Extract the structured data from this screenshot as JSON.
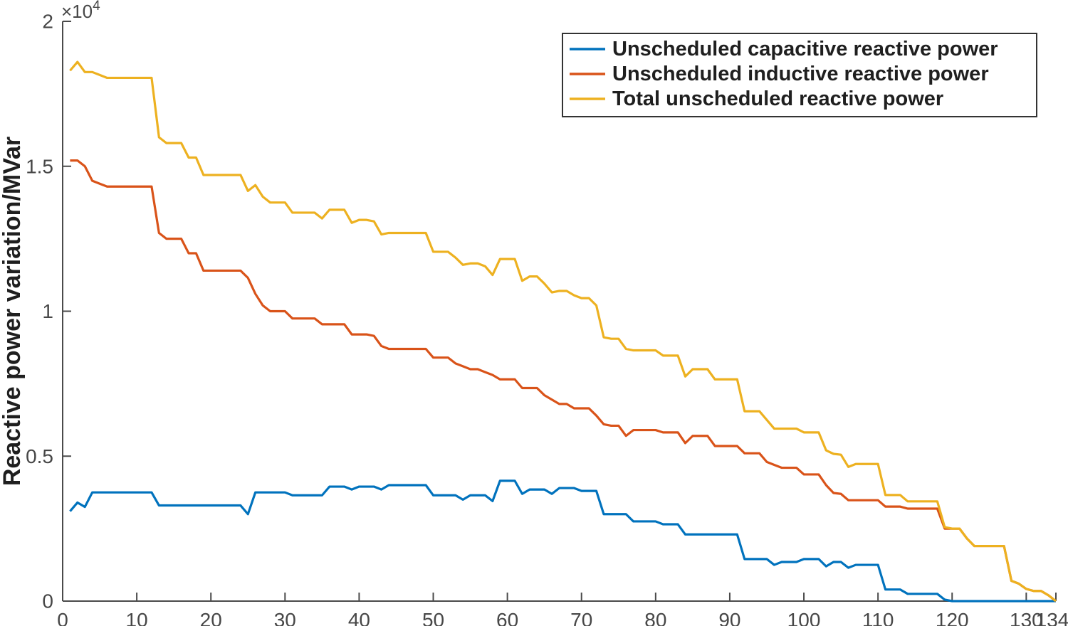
{
  "figure": {
    "background": "#ffffff",
    "axis_color": "#4a4a4a",
    "tick_label_color": "#474747",
    "text_color": "#1f1f1f",
    "y_axis_label": "Reactive power variation/MVar",
    "y_exponent_prefix": "×10",
    "y_exponent_power": "4"
  },
  "legend": {
    "border_color": "#333333",
    "background": "#ffffff",
    "items": [
      {
        "label": "Unscheduled capacitive reactive power",
        "color": "#0072BD"
      },
      {
        "label": "Unscheduled inductive reactive power",
        "color": "#D95319"
      },
      {
        "label": "Total unscheduled reactive power",
        "color": "#EDB120"
      }
    ]
  },
  "chart_data": {
    "type": "line",
    "title": "",
    "xlabel": "",
    "ylabel": "Reactive power variation/MVar",
    "xlim": [
      0,
      134
    ],
    "ylim": [
      0,
      20000
    ],
    "grid": false,
    "legend_position": "top-right-inside",
    "y_scale_note": "y axis shown in units of 10^4 MVar",
    "x_ticks": [
      0,
      10,
      20,
      30,
      40,
      50,
      60,
      70,
      80,
      90,
      100,
      110,
      120,
      130,
      134
    ],
    "y_ticks": [
      {
        "value": 0,
        "label": "0"
      },
      {
        "value": 5000,
        "label": "0.5"
      },
      {
        "value": 10000,
        "label": "1"
      },
      {
        "value": 15000,
        "label": "1.5"
      },
      {
        "value": 20000,
        "label": "2"
      }
    ],
    "x": [
      1,
      2,
      3,
      4,
      5,
      6,
      7,
      8,
      9,
      10,
      11,
      12,
      13,
      14,
      15,
      16,
      17,
      18,
      19,
      20,
      21,
      22,
      23,
      24,
      25,
      26,
      27,
      28,
      29,
      30,
      31,
      32,
      33,
      34,
      35,
      36,
      37,
      38,
      39,
      40,
      41,
      42,
      43,
      44,
      45,
      46,
      47,
      48,
      49,
      50,
      51,
      52,
      53,
      54,
      55,
      56,
      57,
      58,
      59,
      60,
      61,
      62,
      63,
      64,
      65,
      66,
      67,
      68,
      69,
      70,
      71,
      72,
      73,
      74,
      75,
      76,
      77,
      78,
      79,
      80,
      81,
      82,
      83,
      84,
      85,
      86,
      87,
      88,
      89,
      90,
      91,
      92,
      93,
      94,
      95,
      96,
      97,
      98,
      99,
      100,
      101,
      102,
      103,
      104,
      105,
      106,
      107,
      108,
      109,
      110,
      111,
      112,
      113,
      114,
      115,
      116,
      117,
      118,
      119,
      120,
      121,
      122,
      123,
      124,
      125,
      126,
      127,
      128,
      129,
      130,
      131,
      132,
      133,
      134
    ],
    "series": [
      {
        "id": "capacitive",
        "name": "Unscheduled capacitive reactive power",
        "color": "#0072BD",
        "values": [
          3100,
          3400,
          3250,
          3750,
          3750,
          3750,
          3750,
          3750,
          3750,
          3750,
          3750,
          3750,
          3300,
          3300,
          3300,
          3300,
          3300,
          3300,
          3300,
          3300,
          3300,
          3300,
          3300,
          3300,
          3000,
          3750,
          3750,
          3750,
          3750,
          3750,
          3650,
          3650,
          3650,
          3650,
          3650,
          3950,
          3950,
          3950,
          3850,
          3950,
          3950,
          3950,
          3850,
          4000,
          4000,
          4000,
          4000,
          4000,
          4000,
          3650,
          3650,
          3650,
          3650,
          3500,
          3650,
          3650,
          3650,
          3450,
          4150,
          4150,
          4150,
          3700,
          3850,
          3850,
          3850,
          3700,
          3900,
          3900,
          3900,
          3800,
          3800,
          3800,
          3000,
          3000,
          3000,
          3000,
          2750,
          2750,
          2750,
          2750,
          2650,
          2650,
          2650,
          2300,
          2300,
          2300,
          2300,
          2300,
          2300,
          2300,
          2300,
          1450,
          1450,
          1450,
          1450,
          1250,
          1350,
          1350,
          1350,
          1450,
          1450,
          1450,
          1200,
          1350,
          1350,
          1150,
          1250,
          1250,
          1250,
          1250,
          400,
          400,
          400,
          250,
          250,
          250,
          250,
          250,
          50,
          0,
          0,
          0,
          0,
          0,
          0,
          0,
          0,
          0,
          0,
          0,
          0,
          0,
          0,
          0
        ]
      },
      {
        "id": "inductive",
        "name": "Unscheduled inductive reactive power",
        "color": "#D95319",
        "values": [
          15200,
          15200,
          15000,
          14500,
          14400,
          14300,
          14300,
          14300,
          14300,
          14300,
          14300,
          14300,
          12700,
          12500,
          12500,
          12500,
          12000,
          12000,
          11400,
          11400,
          11400,
          11400,
          11400,
          11400,
          11150,
          10600,
          10200,
          10000,
          10000,
          10000,
          9750,
          9750,
          9750,
          9750,
          9550,
          9550,
          9550,
          9550,
          9200,
          9200,
          9200,
          9150,
          8800,
          8700,
          8700,
          8700,
          8700,
          8700,
          8700,
          8400,
          8400,
          8400,
          8200,
          8100,
          8000,
          8000,
          7900,
          7800,
          7650,
          7650,
          7650,
          7350,
          7350,
          7350,
          7100,
          6950,
          6800,
          6800,
          6650,
          6650,
          6650,
          6400,
          6100,
          6050,
          6050,
          5700,
          5900,
          5900,
          5900,
          5900,
          5820,
          5820,
          5820,
          5450,
          5700,
          5700,
          5700,
          5350,
          5350,
          5350,
          5350,
          5100,
          5100,
          5100,
          4800,
          4700,
          4600,
          4600,
          4600,
          4370,
          4370,
          4370,
          4000,
          3730,
          3700,
          3480,
          3480,
          3480,
          3480,
          3480,
          3260,
          3260,
          3260,
          3190,
          3190,
          3190,
          3190,
          3190,
          2500,
          2500,
          2500,
          2160,
          1900,
          1900,
          1900,
          1900,
          1900,
          700,
          600,
          420,
          350,
          350,
          200,
          0
        ]
      },
      {
        "id": "total",
        "name": "Total unscheduled reactive power",
        "color": "#EDB120",
        "values": [
          18300,
          18600,
          18250,
          18250,
          18150,
          18050,
          18050,
          18050,
          18050,
          18050,
          18050,
          18050,
          16000,
          15800,
          15800,
          15800,
          15300,
          15300,
          14700,
          14700,
          14700,
          14700,
          14700,
          14700,
          14150,
          14350,
          13950,
          13750,
          13750,
          13750,
          13400,
          13400,
          13400,
          13400,
          13200,
          13500,
          13500,
          13500,
          13050,
          13150,
          13150,
          13100,
          12650,
          12700,
          12700,
          12700,
          12700,
          12700,
          12700,
          12050,
          12050,
          12050,
          11850,
          11600,
          11650,
          11650,
          11550,
          11250,
          11800,
          11800,
          11800,
          11050,
          11200,
          11200,
          10950,
          10650,
          10700,
          10700,
          10550,
          10450,
          10450,
          10200,
          9100,
          9050,
          9050,
          8700,
          8650,
          8650,
          8650,
          8650,
          8470,
          8470,
          8470,
          7750,
          8000,
          8000,
          8000,
          7650,
          7650,
          7650,
          7650,
          6550,
          6550,
          6550,
          6250,
          5950,
          5950,
          5950,
          5950,
          5820,
          5820,
          5820,
          5200,
          5080,
          5050,
          4630,
          4730,
          4730,
          4730,
          4730,
          3660,
          3660,
          3660,
          3440,
          3440,
          3440,
          3440,
          3440,
          2550,
          2500,
          2500,
          2160,
          1900,
          1900,
          1900,
          1900,
          1900,
          700,
          600,
          420,
          350,
          350,
          200,
          0
        ]
      }
    ]
  }
}
